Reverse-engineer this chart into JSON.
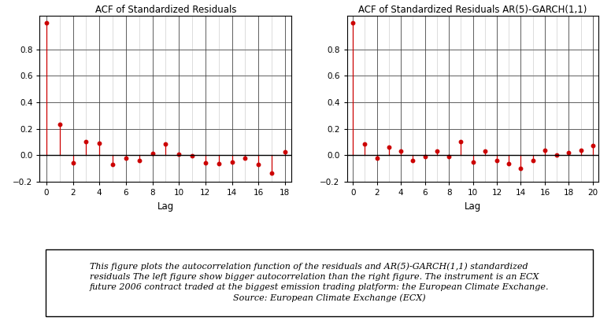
{
  "title1": "ACF of Standardized Residuals",
  "title2": "ACF of Standardized Residuals AR(5)-GARCH(1,1)",
  "xlabel": "Lag",
  "ylim": [
    -0.2,
    1.05
  ],
  "yticks": [
    -0.2,
    0.0,
    0.2,
    0.4,
    0.6,
    0.8
  ],
  "acf1_lags": [
    0,
    1,
    2,
    3,
    4,
    5,
    6,
    7,
    8,
    9,
    10,
    11,
    12,
    13,
    14,
    15,
    16,
    17,
    18
  ],
  "acf1_values": [
    1.0,
    0.235,
    -0.055,
    0.105,
    0.09,
    -0.07,
    -0.025,
    -0.04,
    0.015,
    0.085,
    0.01,
    -0.005,
    -0.06,
    -0.065,
    -0.05,
    -0.02,
    -0.07,
    -0.135,
    0.025
  ],
  "acf1_xticks": [
    0,
    2,
    4,
    6,
    8,
    10,
    12,
    14,
    16,
    18
  ],
  "acf2_lags": [
    0,
    1,
    2,
    3,
    4,
    5,
    6,
    7,
    8,
    9,
    10,
    11,
    12,
    13,
    14,
    15,
    16,
    17,
    18,
    19,
    20
  ],
  "acf2_values": [
    1.0,
    0.085,
    -0.02,
    0.06,
    0.03,
    -0.04,
    -0.01,
    0.03,
    -0.01,
    0.105,
    -0.05,
    0.03,
    -0.04,
    -0.065,
    -0.1,
    -0.04,
    0.04,
    0.0,
    0.02,
    0.035,
    0.07
  ],
  "acf2_xticks": [
    0,
    2,
    4,
    6,
    8,
    10,
    12,
    14,
    16,
    18,
    20
  ],
  "line_color": "#cc0000",
  "marker_color": "#cc0000",
  "zero_line_color": "black",
  "grid_color_dark": "#444444",
  "grid_color_light": "#888888",
  "caption": "This figure plots the autocorrelation function of the residuals and AR(5)-GARCH(1,1) standardized\nresiduals The left figure show bigger autocorrelation than the right figure. The instrument is an ECX\nfuture 2006 contract traded at the biggest emission trading platform: the European Climate Exchange.\n                                                    Source: European Climate Exchange (ECX)",
  "caption_fontsize": 8.0,
  "title_fontsize": 8.5,
  "tick_fontsize": 7.5,
  "label_fontsize": 8.5
}
